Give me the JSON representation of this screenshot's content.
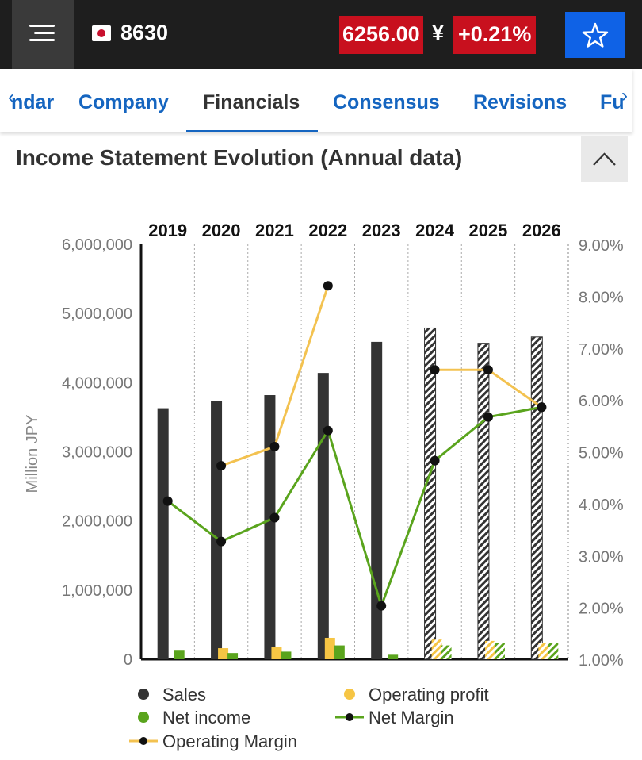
{
  "header": {
    "ticker": "8630",
    "price": "6256.00",
    "currency": "¥",
    "change": "+0.21%",
    "flag": "japan-flag-icon"
  },
  "tabs": [
    {
      "label": "ndar",
      "active": false
    },
    {
      "label": "Company",
      "active": false
    },
    {
      "label": "Financials",
      "active": true
    },
    {
      "label": "Consensus",
      "active": false
    },
    {
      "label": "Revisions",
      "active": false
    },
    {
      "label": "Fu",
      "active": false
    }
  ],
  "section": {
    "title": "Income Statement Evolution (Annual data)"
  },
  "colors": {
    "topbar": "#1e1e1e",
    "accent_red": "#c8101e",
    "accent_blue": "#0f62e6",
    "link_blue": "#1565c0",
    "sales": "#333333",
    "operating_profit": "#f6c544",
    "net_income": "#5aa41d",
    "net_margin_line": "#5aa41d",
    "operating_margin_line": "#f3c250"
  },
  "chart_data": {
    "type": "bar",
    "x": [
      "2019",
      "2020",
      "2021",
      "2022",
      "2023",
      "2024",
      "2025",
      "2026"
    ],
    "estimated": [
      false,
      false,
      false,
      false,
      false,
      true,
      true,
      true
    ],
    "ylabel": "Million JPY",
    "y_ticks": [
      "6,000,000",
      "5,000,000",
      "4,000,000",
      "3,000,000",
      "2,000,000",
      "1,000,000",
      "0"
    ],
    "ylim": [
      0,
      6000000
    ],
    "y2_ticks": [
      "9.00%",
      "8.00%",
      "7.00%",
      "6.00%",
      "5.00%",
      "4.00%",
      "3.00%",
      "2.00%",
      "1.00%"
    ],
    "y2lim": [
      1.0,
      9.0
    ],
    "series": [
      {
        "name": "Sales",
        "kind": "bar",
        "values": [
          3630000,
          3740000,
          3820000,
          4140000,
          4590000,
          4790000,
          4570000,
          4660000
        ]
      },
      {
        "name": "Operating profit",
        "kind": "bar",
        "values": [
          null,
          160000,
          175000,
          310000,
          null,
          285000,
          265000,
          240000
        ]
      },
      {
        "name": "Net income",
        "kind": "bar",
        "values": [
          135000,
          90000,
          110000,
          200000,
          65000,
          200000,
          230000,
          230000
        ]
      },
      {
        "name": "Net Margin",
        "kind": "line",
        "axis": "right",
        "values": [
          4.05,
          3.27,
          3.73,
          5.41,
          2.03,
          4.83,
          5.67,
          5.86
        ]
      },
      {
        "name": "Operating Margin",
        "kind": "line",
        "axis": "right",
        "values": [
          null,
          4.73,
          5.1,
          8.2,
          null,
          6.58,
          6.58,
          5.86
        ]
      }
    ],
    "legend": [
      {
        "label": "Sales",
        "marker": "dot",
        "color": "#333333"
      },
      {
        "label": "Operating profit",
        "marker": "dot",
        "color": "#f6c544"
      },
      {
        "label": "Net income",
        "marker": "dot",
        "color": "#5aa41d"
      },
      {
        "label": "Net Margin",
        "marker": "line-dot",
        "color": "#5aa41d"
      },
      {
        "label": "Operating Margin",
        "marker": "line-dot",
        "color": "#f3c250"
      }
    ],
    "legend_position": "bottom",
    "grid": "vertical-dotted"
  }
}
